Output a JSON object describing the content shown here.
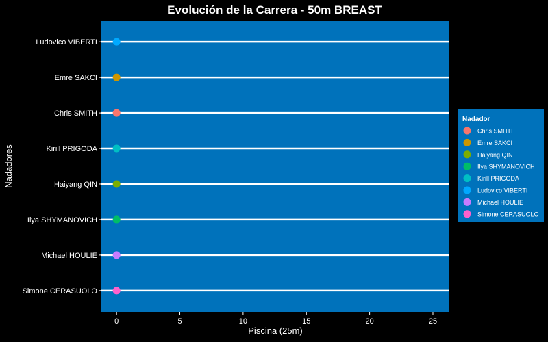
{
  "chart_data": {
    "type": "scatter",
    "title": "Evolución de la Carrera - 50m BREAST",
    "xlabel": "Piscina (25m)",
    "ylabel": "Nadadores",
    "xlim": [
      -1.2,
      26.3
    ],
    "xticks": [
      0,
      5,
      10,
      15,
      20,
      25
    ],
    "grid": false,
    "panel_color": "#0072BB",
    "lane_color": "#ffffff",
    "categories": [
      "Ludovico VIBERTI",
      "Emre SAKCI",
      "Chris SMITH",
      "Kirill PRIGODA",
      "Haiyang QIN",
      "Ilya SHYMANOVICH",
      "Michael HOULIE",
      "Simone CERASUOLO"
    ],
    "points": [
      {
        "swimmer": "Ludovico VIBERTI",
        "x": 0,
        "color": "#00A9FF"
      },
      {
        "swimmer": "Emre SAKCI",
        "x": 0,
        "color": "#CD9600"
      },
      {
        "swimmer": "Chris SMITH",
        "x": 0,
        "color": "#F8766D"
      },
      {
        "swimmer": "Kirill PRIGODA",
        "x": 0,
        "color": "#00BFC4"
      },
      {
        "swimmer": "Haiyang QIN",
        "x": 0,
        "color": "#7CAE00"
      },
      {
        "swimmer": "Ilya SHYMANOVICH",
        "x": 0,
        "color": "#00BE67"
      },
      {
        "swimmer": "Michael HOULIE",
        "x": 0,
        "color": "#C77CFF"
      },
      {
        "swimmer": "Simone CERASUOLO",
        "x": 0,
        "color": "#FF61CC"
      }
    ],
    "legend": {
      "title": "Nadador",
      "position": "right",
      "entries": [
        {
          "label": "Chris SMITH",
          "color": "#F8766D"
        },
        {
          "label": "Emre SAKCI",
          "color": "#CD9600"
        },
        {
          "label": "Haiyang QIN",
          "color": "#7CAE00"
        },
        {
          "label": "Ilya SHYMANOVICH",
          "color": "#00BE67"
        },
        {
          "label": "Kirill PRIGODA",
          "color": "#00BFC4"
        },
        {
          "label": "Ludovico VIBERTI",
          "color": "#00A9FF"
        },
        {
          "label": "Michael HOULIE",
          "color": "#C77CFF"
        },
        {
          "label": "Simone CERASUOLO",
          "color": "#FF61CC"
        }
      ]
    }
  }
}
